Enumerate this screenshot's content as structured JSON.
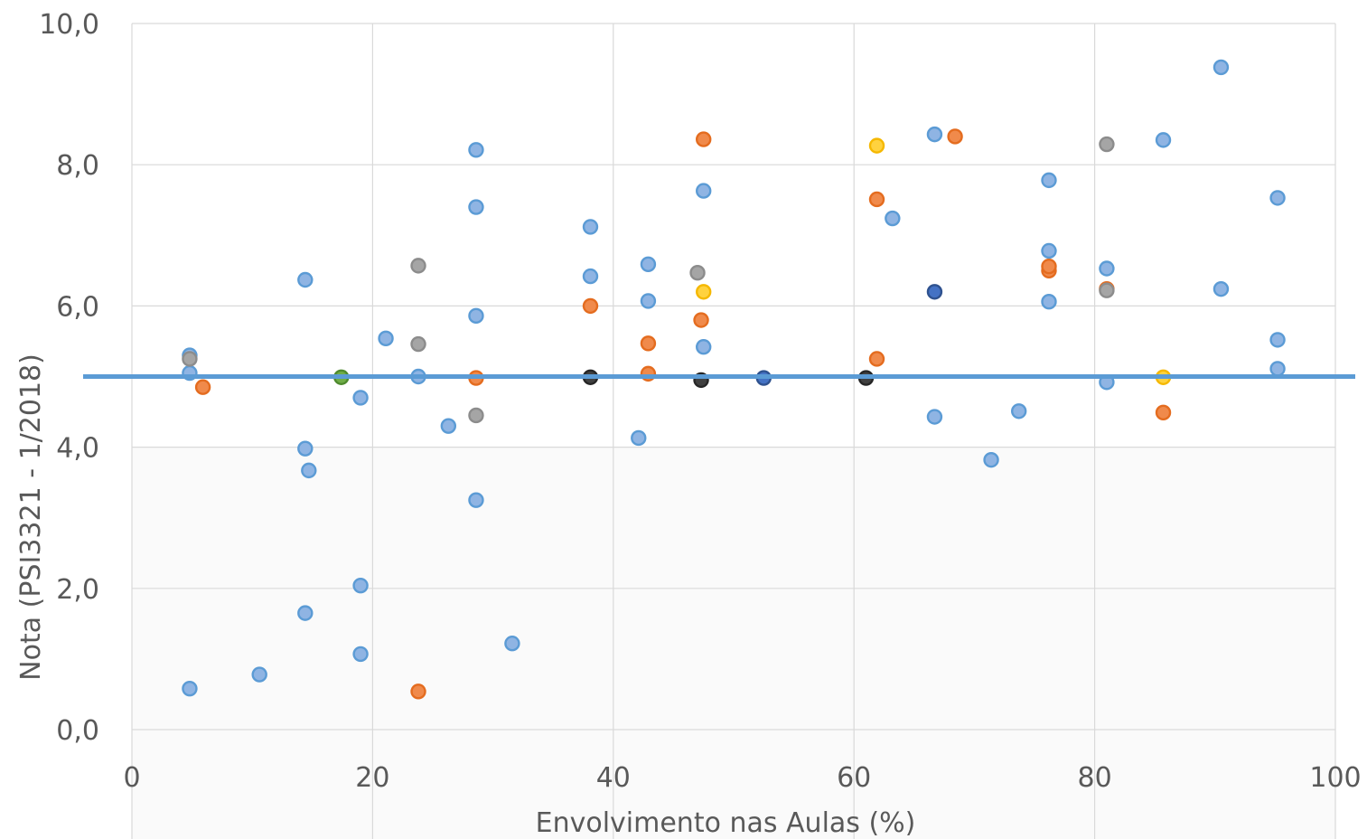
{
  "chart_data": {
    "type": "scatter",
    "title": "",
    "xlabel": "Envolvimento nas Aulas (%)",
    "ylabel": "Nota (PSI3321 - 1/2018)",
    "xlim": [
      0,
      100
    ],
    "ylim": [
      0,
      10
    ],
    "x_ticks": [
      "0",
      "20",
      "40",
      "60",
      "80",
      "100"
    ],
    "y_ticks": [
      "0,0",
      "2,0",
      "4,0",
      "6,0",
      "8,0",
      "10,0"
    ],
    "grid": true,
    "reference_line": {
      "y": 5.0,
      "color": "#5b9bd5"
    },
    "colors": {
      "blue": "#8fb4e3",
      "orange": "#f08a4b",
      "gray": "#a5a5a5",
      "yellow": "#ffd23f",
      "green": "#70ad47",
      "dark_blue": "#4472c4",
      "dark": "#404040"
    },
    "points": [
      {
        "x": 4.8,
        "y": 0.58,
        "c": "blue"
      },
      {
        "x": 4.8,
        "y": 5.3,
        "c": "blue"
      },
      {
        "x": 4.8,
        "y": 5.05,
        "c": "blue"
      },
      {
        "x": 4.8,
        "y": 5.25,
        "c": "gray"
      },
      {
        "x": 5.9,
        "y": 4.85,
        "c": "orange"
      },
      {
        "x": 10.6,
        "y": 0.78,
        "c": "blue"
      },
      {
        "x": 14.4,
        "y": 1.65,
        "c": "blue"
      },
      {
        "x": 14.4,
        "y": 3.98,
        "c": "blue"
      },
      {
        "x": 14.7,
        "y": 3.67,
        "c": "blue"
      },
      {
        "x": 14.4,
        "y": 6.37,
        "c": "blue"
      },
      {
        "x": 17.4,
        "y": 4.99,
        "c": "green"
      },
      {
        "x": 19.0,
        "y": 1.07,
        "c": "blue"
      },
      {
        "x": 19.0,
        "y": 2.04,
        "c": "blue"
      },
      {
        "x": 19.0,
        "y": 4.7,
        "c": "blue"
      },
      {
        "x": 21.1,
        "y": 5.54,
        "c": "blue"
      },
      {
        "x": 23.8,
        "y": 0.54,
        "c": "orange"
      },
      {
        "x": 23.8,
        "y": 5.0,
        "c": "blue"
      },
      {
        "x": 23.8,
        "y": 5.46,
        "c": "gray"
      },
      {
        "x": 23.8,
        "y": 6.57,
        "c": "gray"
      },
      {
        "x": 26.3,
        "y": 4.3,
        "c": "blue"
      },
      {
        "x": 28.6,
        "y": 3.25,
        "c": "blue"
      },
      {
        "x": 28.6,
        "y": 4.45,
        "c": "gray"
      },
      {
        "x": 28.6,
        "y": 4.98,
        "c": "orange"
      },
      {
        "x": 28.6,
        "y": 5.86,
        "c": "blue"
      },
      {
        "x": 28.6,
        "y": 7.4,
        "c": "blue"
      },
      {
        "x": 28.6,
        "y": 8.21,
        "c": "blue"
      },
      {
        "x": 31.6,
        "y": 1.22,
        "c": "blue"
      },
      {
        "x": 38.1,
        "y": 4.99,
        "c": "dark"
      },
      {
        "x": 38.1,
        "y": 6.0,
        "c": "orange"
      },
      {
        "x": 38.1,
        "y": 6.42,
        "c": "blue"
      },
      {
        "x": 38.1,
        "y": 7.12,
        "c": "blue"
      },
      {
        "x": 42.1,
        "y": 4.13,
        "c": "blue"
      },
      {
        "x": 42.9,
        "y": 5.04,
        "c": "orange"
      },
      {
        "x": 42.9,
        "y": 5.47,
        "c": "orange"
      },
      {
        "x": 42.9,
        "y": 6.07,
        "c": "blue"
      },
      {
        "x": 42.9,
        "y": 6.59,
        "c": "blue"
      },
      {
        "x": 47.3,
        "y": 4.95,
        "c": "dark"
      },
      {
        "x": 47.3,
        "y": 5.8,
        "c": "orange"
      },
      {
        "x": 47.5,
        "y": 5.42,
        "c": "blue"
      },
      {
        "x": 47.0,
        "y": 6.47,
        "c": "gray"
      },
      {
        "x": 47.5,
        "y": 6.2,
        "c": "yellow"
      },
      {
        "x": 47.5,
        "y": 7.63,
        "c": "blue"
      },
      {
        "x": 47.5,
        "y": 8.36,
        "c": "orange"
      },
      {
        "x": 52.5,
        "y": 4.98,
        "c": "dark_blue"
      },
      {
        "x": 61.0,
        "y": 4.98,
        "c": "dark"
      },
      {
        "x": 61.9,
        "y": 5.25,
        "c": "orange"
      },
      {
        "x": 61.9,
        "y": 7.51,
        "c": "orange"
      },
      {
        "x": 61.9,
        "y": 8.27,
        "c": "yellow"
      },
      {
        "x": 63.2,
        "y": 7.24,
        "c": "blue"
      },
      {
        "x": 66.7,
        "y": 4.43,
        "c": "blue"
      },
      {
        "x": 66.7,
        "y": 6.2,
        "c": "dark_blue"
      },
      {
        "x": 66.7,
        "y": 8.43,
        "c": "blue"
      },
      {
        "x": 68.4,
        "y": 8.4,
        "c": "orange"
      },
      {
        "x": 71.4,
        "y": 3.82,
        "c": "blue"
      },
      {
        "x": 73.7,
        "y": 4.51,
        "c": "blue"
      },
      {
        "x": 76.2,
        "y": 6.06,
        "c": "blue"
      },
      {
        "x": 76.2,
        "y": 6.5,
        "c": "orange"
      },
      {
        "x": 76.2,
        "y": 6.56,
        "c": "orange"
      },
      {
        "x": 76.2,
        "y": 6.78,
        "c": "blue"
      },
      {
        "x": 76.2,
        "y": 7.78,
        "c": "blue"
      },
      {
        "x": 81.0,
        "y": 4.92,
        "c": "blue"
      },
      {
        "x": 81.0,
        "y": 6.24,
        "c": "orange"
      },
      {
        "x": 81.0,
        "y": 6.22,
        "c": "gray"
      },
      {
        "x": 81.0,
        "y": 6.53,
        "c": "blue"
      },
      {
        "x": 81.0,
        "y": 8.29,
        "c": "gray"
      },
      {
        "x": 85.7,
        "y": 4.49,
        "c": "orange"
      },
      {
        "x": 85.7,
        "y": 4.99,
        "c": "yellow"
      },
      {
        "x": 85.7,
        "y": 8.35,
        "c": "blue"
      },
      {
        "x": 90.5,
        "y": 6.24,
        "c": "blue"
      },
      {
        "x": 90.5,
        "y": 9.38,
        "c": "blue"
      },
      {
        "x": 95.2,
        "y": 5.11,
        "c": "blue"
      },
      {
        "x": 95.2,
        "y": 5.52,
        "c": "blue"
      },
      {
        "x": 95.2,
        "y": 7.53,
        "c": "blue"
      }
    ]
  }
}
